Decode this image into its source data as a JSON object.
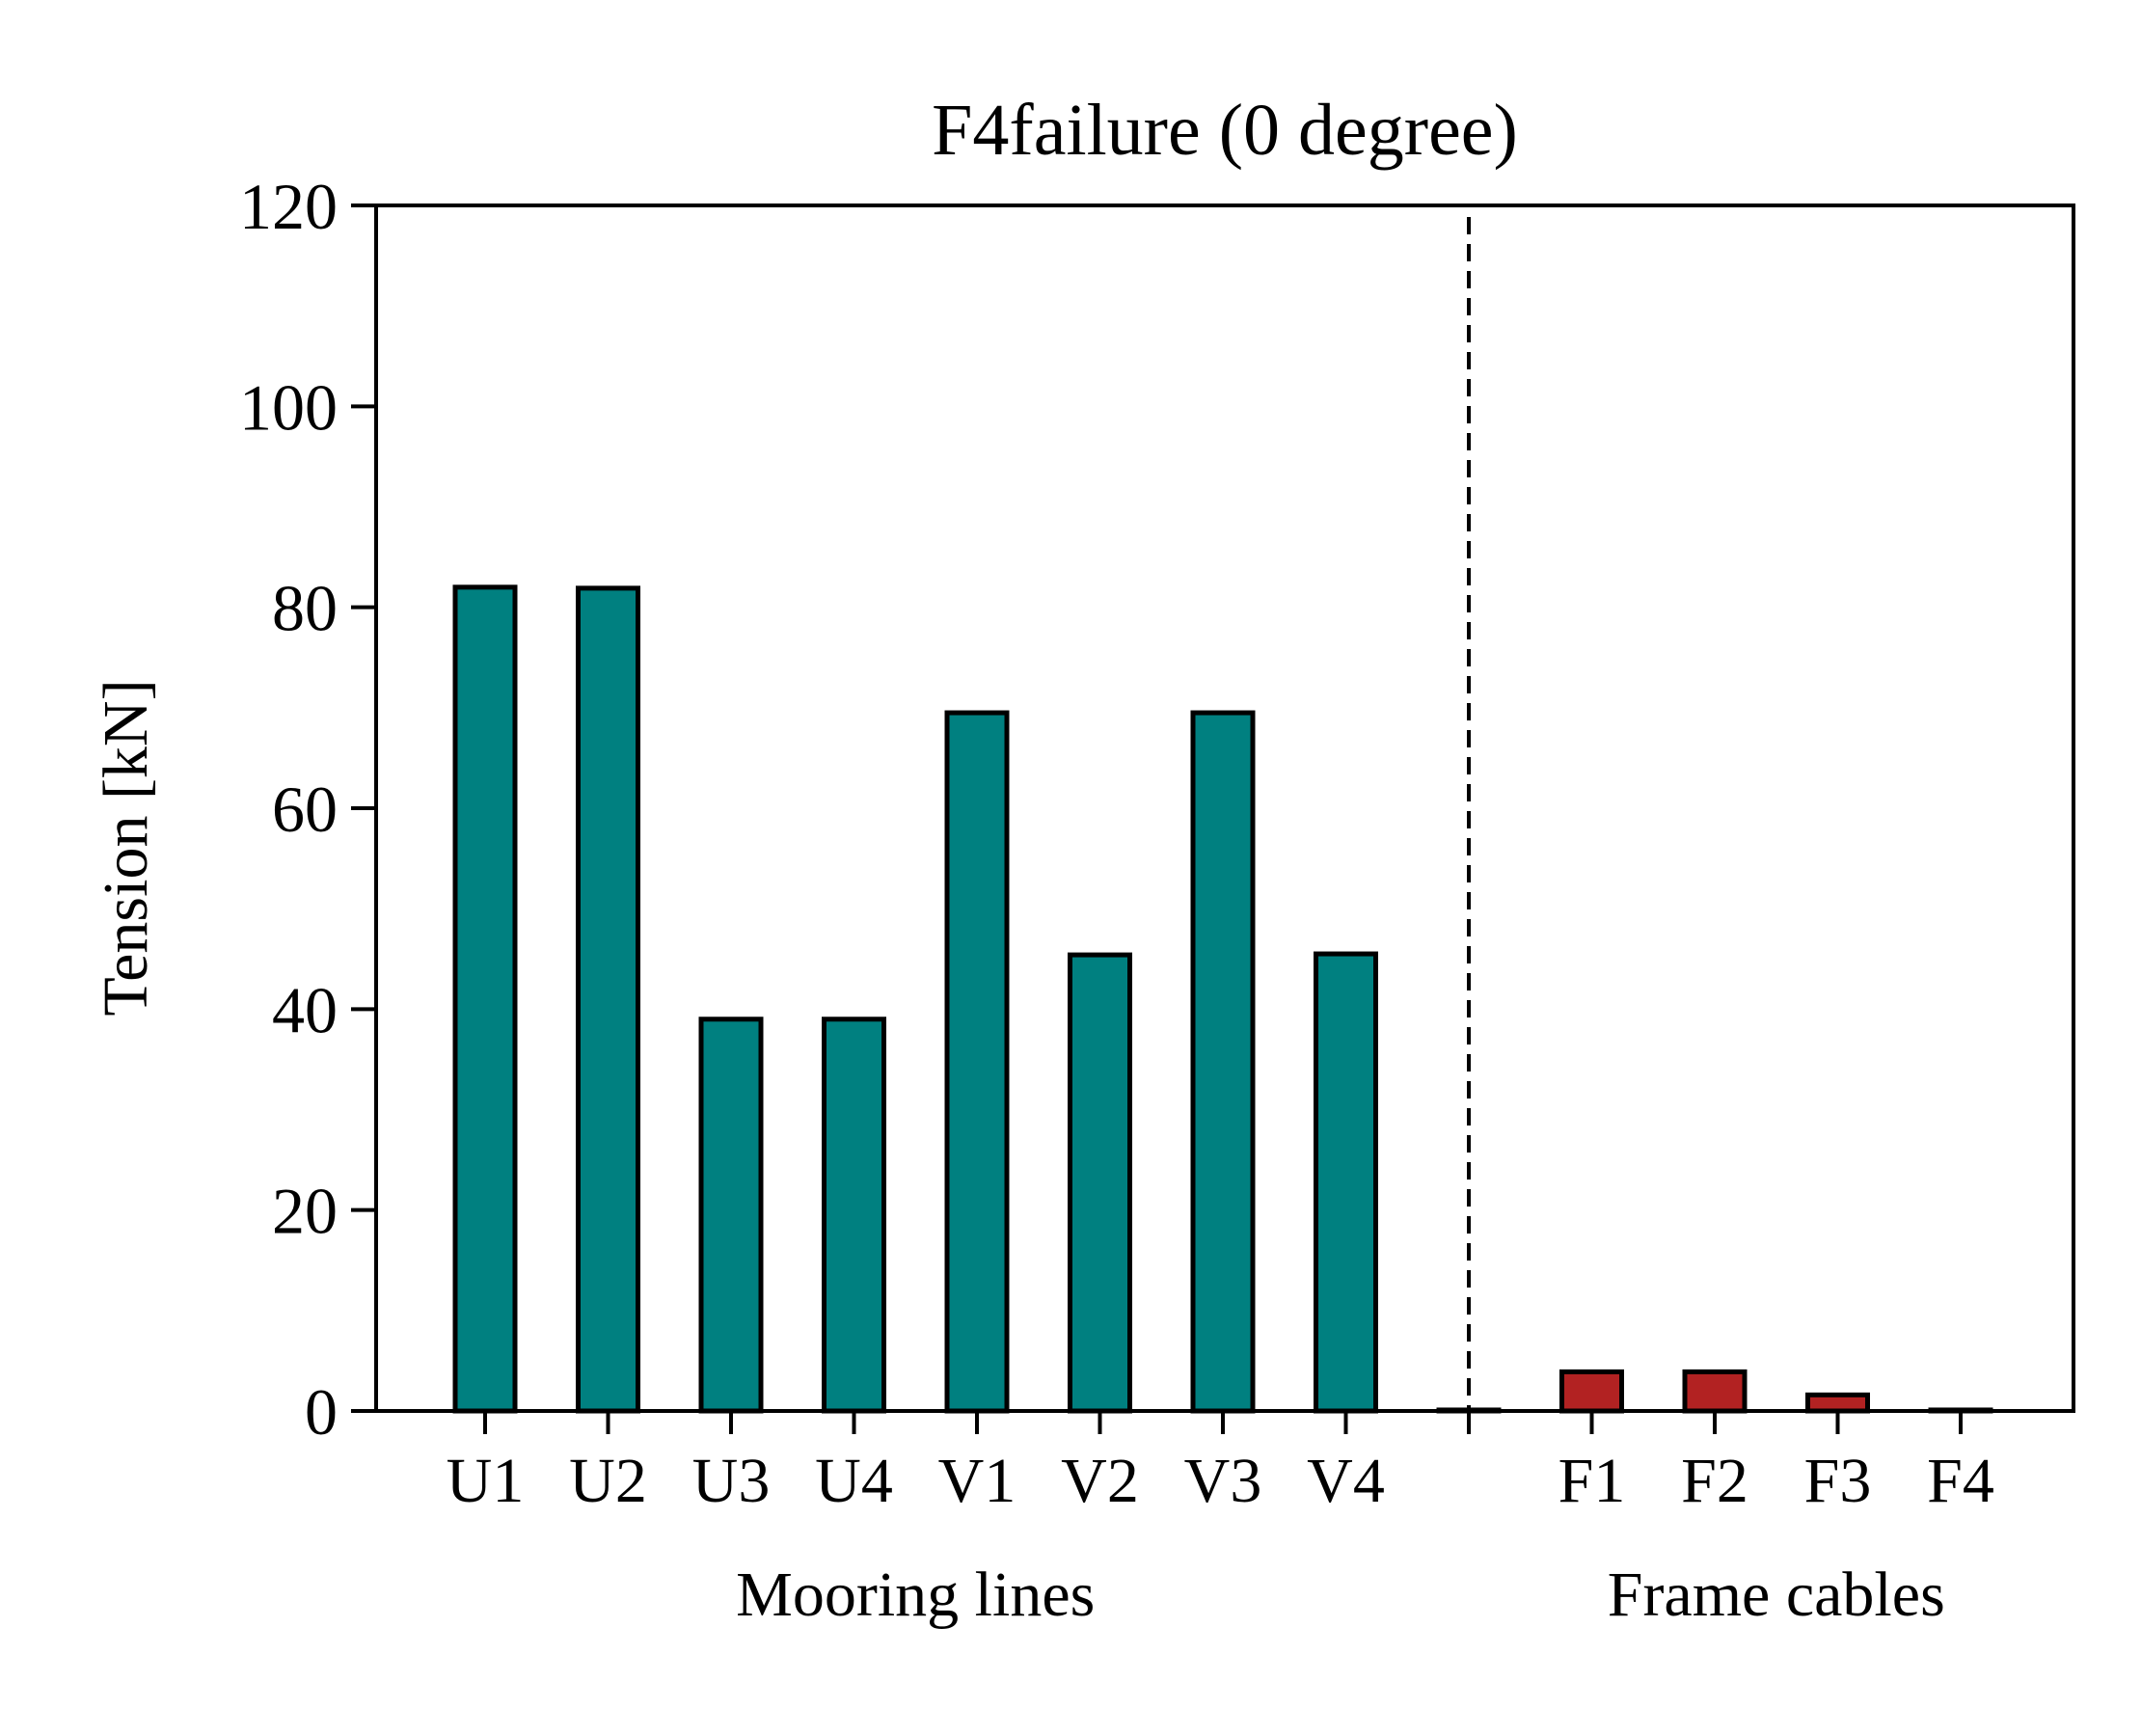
{
  "chart_data": {
    "type": "bar",
    "title": "F4failure (0 degree)",
    "xlabel": "",
    "ylabel": "Tension [kN]",
    "ylim": [
      0,
      120
    ],
    "yticks": [
      0,
      20,
      40,
      60,
      80,
      100,
      120
    ],
    "grid": false,
    "legend": "none",
    "categories": [
      "U1",
      "U2",
      "U3",
      "U4",
      "V1",
      "V2",
      "V3",
      "V4",
      "",
      "F1",
      "F2",
      "F3",
      "F4"
    ],
    "series": [
      {
        "values": [
          82.0,
          81.9,
          39.0,
          39.0,
          69.5,
          45.4,
          69.5,
          45.5,
          0.1,
          3.9,
          3.9,
          1.6,
          0.1
        ],
        "colors": [
          "#008080",
          "#008080",
          "#008080",
          "#008080",
          "#008080",
          "#008080",
          "#008080",
          "#008080",
          "#008080",
          "#b22222",
          "#b22222",
          "#b22222",
          "#b22222"
        ]
      }
    ],
    "bar_edge_color": "#000000",
    "divider": {
      "after_category_index": 8,
      "style": "dashed"
    },
    "groups": [
      {
        "label": "Mooring lines",
        "first_index": 0,
        "last_index": 7
      },
      {
        "label": "Frame cables",
        "first_index": 9,
        "last_index": 12
      }
    ]
  }
}
